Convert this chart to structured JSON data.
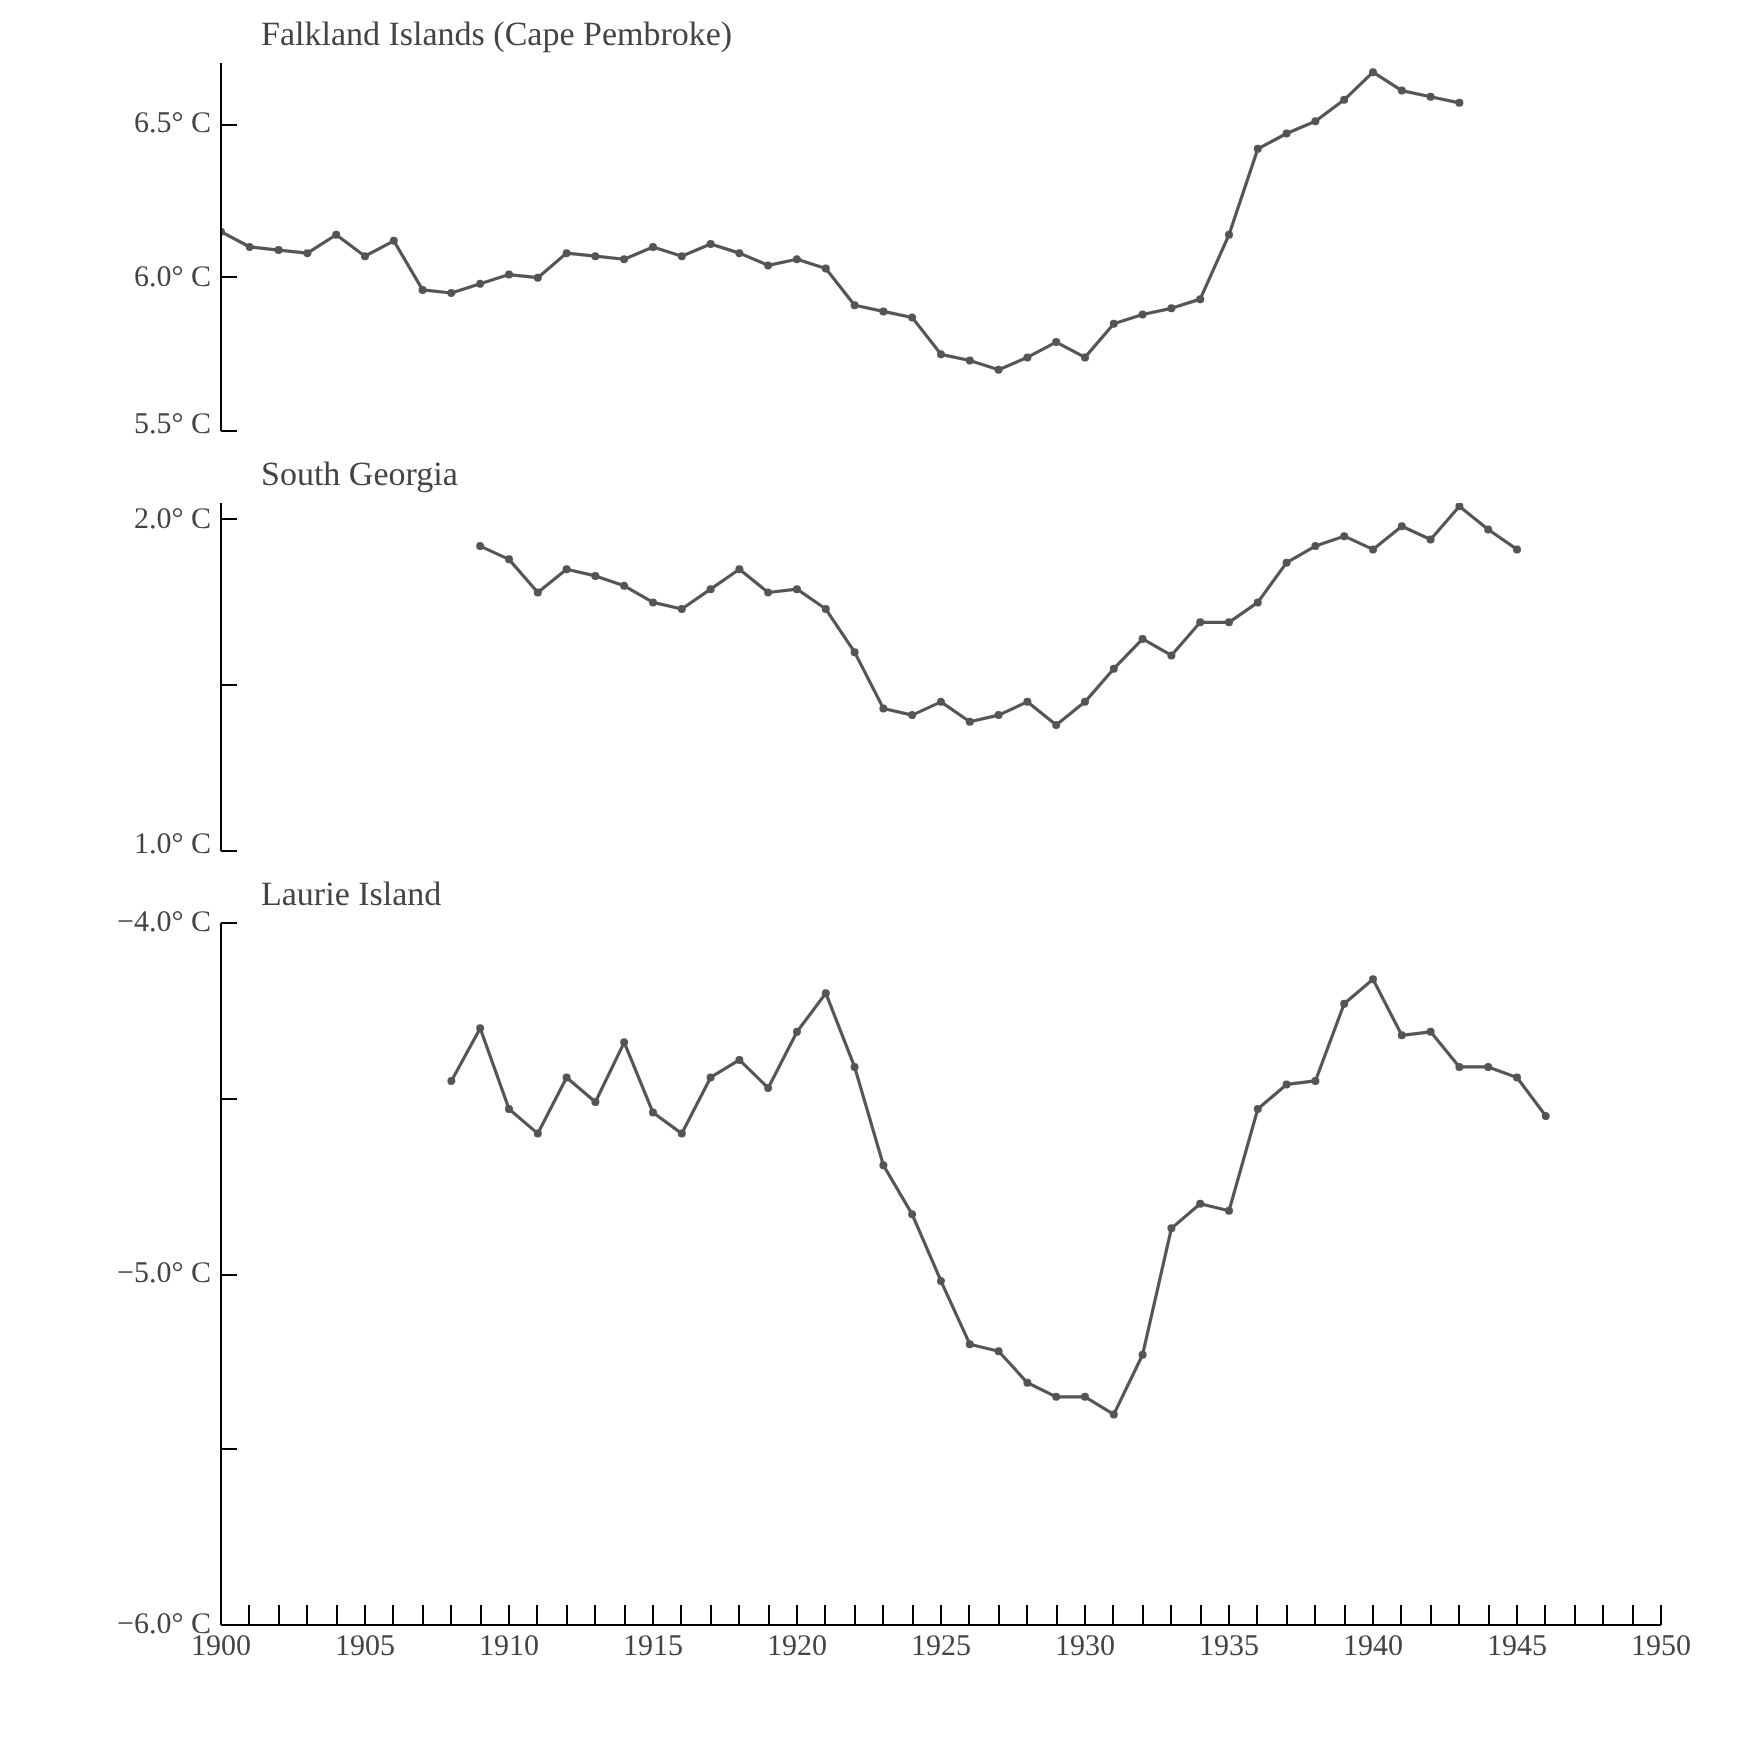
{
  "chart_data": [
    {
      "type": "line",
      "title": "Falkland Islands (Cape Pembroke)",
      "x": [
        1900,
        1901,
        1902,
        1903,
        1904,
        1905,
        1906,
        1907,
        1908,
        1909,
        1910,
        1911,
        1912,
        1913,
        1914,
        1915,
        1916,
        1917,
        1918,
        1919,
        1920,
        1921,
        1922,
        1923,
        1924,
        1925,
        1926,
        1927,
        1928,
        1929,
        1930,
        1931,
        1932,
        1933,
        1934,
        1935,
        1936,
        1937,
        1938,
        1939,
        1940,
        1941,
        1942,
        1943
      ],
      "series": [
        {
          "color": "#555555",
          "values": [
            6.15,
            6.1,
            6.09,
            6.08,
            6.14,
            6.07,
            6.12,
            5.96,
            5.95,
            5.98,
            6.01,
            6.0,
            6.08,
            6.07,
            6.06,
            6.1,
            6.07,
            6.11,
            6.08,
            6.04,
            6.06,
            6.03,
            5.91,
            5.89,
            5.87,
            5.75,
            5.73,
            5.7,
            5.74,
            5.79,
            5.74,
            5.85,
            5.88,
            5.9,
            5.93,
            6.14,
            6.42,
            6.47,
            6.51,
            6.58,
            6.67,
            6.61,
            6.59,
            6.57
          ]
        }
      ],
      "xlim": [
        1900,
        1950
      ],
      "ylim": [
        5.5,
        6.7
      ],
      "yticks": [
        {
          "value": 5.5,
          "label": "5.5° C"
        },
        {
          "value": 6.0,
          "label": "6.0° C"
        },
        {
          "value": 6.5,
          "label": "6.5° C"
        }
      ],
      "tick_labels": "y",
      "grid": false,
      "marker": "circle",
      "line_style": "solid"
    },
    {
      "type": "line",
      "title": "South Georgia",
      "x": [
        1909,
        1910,
        1911,
        1912,
        1913,
        1914,
        1915,
        1916,
        1917,
        1918,
        1919,
        1920,
        1921,
        1922,
        1923,
        1924,
        1925,
        1926,
        1927,
        1928,
        1929,
        1930,
        1931,
        1932,
        1933,
        1934,
        1935,
        1936,
        1937,
        1938,
        1939,
        1940,
        1941,
        1942,
        1943,
        1944,
        1945
      ],
      "series": [
        {
          "color": "#555555",
          "values": [
            1.92,
            1.88,
            1.78,
            1.85,
            1.83,
            1.8,
            1.75,
            1.73,
            1.79,
            1.85,
            1.78,
            1.79,
            1.73,
            1.6,
            1.43,
            1.41,
            1.45,
            1.39,
            1.41,
            1.45,
            1.38,
            1.45,
            1.55,
            1.64,
            1.59,
            1.69,
            1.69,
            1.75,
            1.87,
            1.92,
            1.95,
            1.91,
            1.98,
            1.94,
            2.04,
            1.97,
            1.91
          ]
        }
      ],
      "xlim": [
        1900,
        1950
      ],
      "ylim": [
        1.0,
        2.05
      ],
      "yticks": [
        {
          "value": 1.0,
          "label": "1.0° C"
        },
        {
          "value": 1.5,
          "label": null
        },
        {
          "value": 2.0,
          "label": "2.0° C"
        }
      ],
      "tick_labels": "y",
      "grid": false,
      "marker": "circle",
      "line_style": "solid"
    },
    {
      "type": "line",
      "title": "Laurie Island",
      "x": [
        1908,
        1909,
        1910,
        1911,
        1912,
        1913,
        1914,
        1915,
        1916,
        1917,
        1918,
        1919,
        1920,
        1921,
        1922,
        1923,
        1924,
        1925,
        1926,
        1927,
        1928,
        1929,
        1930,
        1931,
        1932,
        1933,
        1934,
        1935,
        1936,
        1937,
        1938,
        1939,
        1940,
        1941,
        1942,
        1943,
        1944,
        1945,
        1946
      ],
      "series": [
        {
          "color": "#555555",
          "values": [
            -4.45,
            -4.3,
            -4.53,
            -4.6,
            -4.44,
            -4.51,
            -4.34,
            -4.54,
            -4.6,
            -4.44,
            -4.39,
            -4.47,
            -4.31,
            -4.2,
            -4.41,
            -4.69,
            -4.83,
            -5.02,
            -5.2,
            -5.22,
            -5.31,
            -5.35,
            -5.35,
            -5.4,
            -5.23,
            -4.87,
            -4.8,
            -4.82,
            -4.53,
            -4.46,
            -4.45,
            -4.23,
            -4.16,
            -4.32,
            -4.31,
            -4.41,
            -4.41,
            -4.44,
            -4.55
          ]
        }
      ],
      "xlim": [
        1900,
        1950
      ],
      "ylim": [
        -6.0,
        -4.0
      ],
      "yticks": [
        {
          "value": -6.0,
          "label": "−6.0° C"
        },
        {
          "value": -5.5,
          "label": null
        },
        {
          "value": -5.0,
          "label": "−5.0° C"
        },
        {
          "value": -4.5,
          "label": null
        },
        {
          "value": -4.0,
          "label": "−4.0° C"
        }
      ],
      "xticks": [
        1900,
        {
          "value": 1901,
          "label": null
        },
        {
          "value": 1902,
          "label": null
        },
        {
          "value": 1903,
          "label": null
        },
        {
          "value": 1904,
          "label": null
        },
        1905,
        {
          "value": 1906,
          "label": null
        },
        {
          "value": 1907,
          "label": null
        },
        {
          "value": 1908,
          "label": null
        },
        {
          "value": 1909,
          "label": null
        },
        1910,
        {
          "value": 1911,
          "label": null
        },
        {
          "value": 1912,
          "label": null
        },
        {
          "value": 1913,
          "label": null
        },
        {
          "value": 1914,
          "label": null
        },
        1915,
        {
          "value": 1916,
          "label": null
        },
        {
          "value": 1917,
          "label": null
        },
        {
          "value": 1918,
          "label": null
        },
        {
          "value": 1919,
          "label": null
        },
        1920,
        {
          "value": 1921,
          "label": null
        },
        {
          "value": 1922,
          "label": null
        },
        {
          "value": 1923,
          "label": null
        },
        {
          "value": 1924,
          "label": null
        },
        1925,
        {
          "value": 1926,
          "label": null
        },
        {
          "value": 1927,
          "label": null
        },
        {
          "value": 1928,
          "label": null
        },
        {
          "value": 1929,
          "label": null
        },
        1930,
        {
          "value": 1931,
          "label": null
        },
        {
          "value": 1932,
          "label": null
        },
        {
          "value": 1933,
          "label": null
        },
        {
          "value": 1934,
          "label": null
        },
        1935,
        {
          "value": 1936,
          "label": null
        },
        {
          "value": 1937,
          "label": null
        },
        {
          "value": 1938,
          "label": null
        },
        {
          "value": 1939,
          "label": null
        },
        1940,
        {
          "value": 1941,
          "label": null
        },
        {
          "value": 1942,
          "label": null
        },
        {
          "value": 1943,
          "label": null
        },
        {
          "value": 1944,
          "label": null
        },
        1945,
        {
          "value": 1946,
          "label": null
        },
        {
          "value": 1947,
          "label": null
        },
        {
          "value": 1948,
          "label": null
        },
        {
          "value": 1949,
          "label": null
        },
        1950
      ],
      "grid": false,
      "marker": "circle",
      "line_style": "solid"
    }
  ]
}
